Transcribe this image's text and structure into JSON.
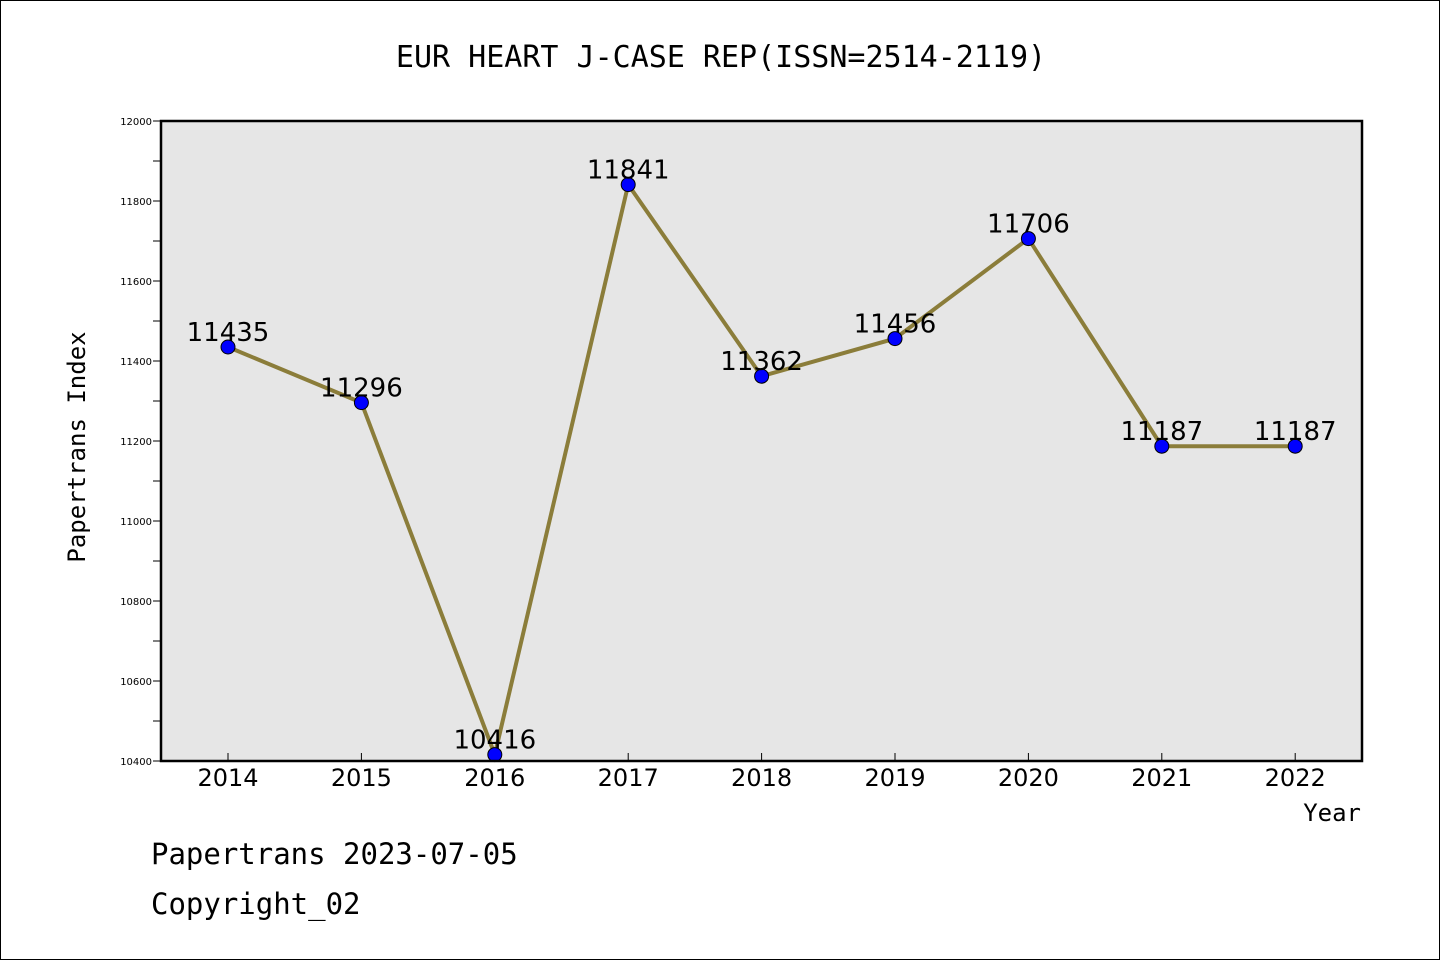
{
  "chart_data": {
    "type": "line",
    "title": "EUR HEART J-CASE REP(ISSN=2514-2119)",
    "xlabel": "Year",
    "ylabel": "Papertrans Index",
    "categories": [
      "2014",
      "2015",
      "2016",
      "2017",
      "2018",
      "2019",
      "2020",
      "2021",
      "2022"
    ],
    "series": [
      {
        "values": [
          11435,
          11296,
          10416,
          11841,
          11362,
          11456,
          11706,
          11187,
          11187
        ]
      }
    ],
    "data_labels": [
      "11435",
      "11296",
      "10416",
      "11841",
      "11362",
      "11456",
      "11706",
      "11187",
      "11187"
    ],
    "ylim": [
      10400,
      12000
    ],
    "yticks": [
      10400,
      10600,
      10800,
      11000,
      11200,
      11400,
      11600,
      11800,
      12000
    ],
    "grid": false,
    "line_color": "#8b7d3a",
    "marker_color": "#0000ff",
    "plot_background": "#e6e6e6"
  },
  "footer": {
    "line1": "Papertrans 2023-07-05",
    "line2": "Copyright_02"
  }
}
